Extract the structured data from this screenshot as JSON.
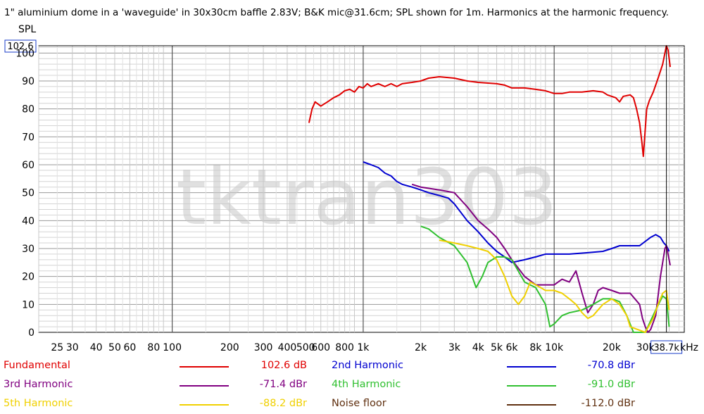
{
  "chart_data": {
    "type": "line",
    "title": "1\" aluminium dome in a 'waveguide' in 30x30cm baffle 2.83V; B&K mic@31.6cm; SPL shown for 1m. Harmonics at the harmonic frequency.",
    "ylabel": "SPL",
    "xlabel": "Hz",
    "xscale": "log",
    "xlim": [
      20,
      48000
    ],
    "ylim": [
      0,
      102.6
    ],
    "y_ticks": [
      0,
      10,
      20,
      30,
      40,
      50,
      60,
      70,
      80,
      90,
      100
    ],
    "x_ticks": [
      {
        "value": 25,
        "label": "25"
      },
      {
        "value": 30,
        "label": "30"
      },
      {
        "value": 40,
        "label": "40"
      },
      {
        "value": 50,
        "label": "50"
      },
      {
        "value": 60,
        "label": "60"
      },
      {
        "value": 80,
        "label": "80"
      },
      {
        "value": 100,
        "label": "100"
      },
      {
        "value": 200,
        "label": "200"
      },
      {
        "value": 300,
        "label": "300"
      },
      {
        "value": 400,
        "label": "400"
      },
      {
        "value": 500,
        "label": "500"
      },
      {
        "value": 600,
        "label": "600"
      },
      {
        "value": 800,
        "label": "800"
      },
      {
        "value": 1000,
        "label": "1k"
      },
      {
        "value": 2000,
        "label": "2k"
      },
      {
        "value": 3000,
        "label": "3k"
      },
      {
        "value": 4000,
        "label": "4k"
      },
      {
        "value": 5000,
        "label": "5k"
      },
      {
        "value": 6000,
        "label": "6k"
      },
      {
        "value": 8000,
        "label": "8k"
      },
      {
        "value": 10000,
        "label": "10k"
      },
      {
        "value": 20000,
        "label": "20k"
      },
      {
        "value": 30000,
        "label": "30k"
      }
    ],
    "x_unit_label": "kHz",
    "cursor": {
      "x": 38700,
      "y": 102.6,
      "x_label": "38.7k",
      "y_label": "102.6"
    },
    "watermark": "tktran303",
    "series": [
      {
        "name": "Fundamental",
        "color": "#e00000",
        "legend_value": "102.6 dB",
        "points": [
          [
            520,
            75
          ],
          [
            540,
            80
          ],
          [
            560,
            82.5
          ],
          [
            600,
            81
          ],
          [
            650,
            82.5
          ],
          [
            700,
            84
          ],
          [
            750,
            85
          ],
          [
            800,
            86.5
          ],
          [
            850,
            87
          ],
          [
            900,
            86
          ],
          [
            950,
            88
          ],
          [
            1000,
            87.5
          ],
          [
            1050,
            89
          ],
          [
            1100,
            88
          ],
          [
            1200,
            89
          ],
          [
            1300,
            88
          ],
          [
            1400,
            89
          ],
          [
            1500,
            88
          ],
          [
            1600,
            89
          ],
          [
            1800,
            89.5
          ],
          [
            2000,
            90
          ],
          [
            2200,
            91
          ],
          [
            2500,
            91.5
          ],
          [
            3000,
            91
          ],
          [
            3500,
            90
          ],
          [
            4000,
            89.5
          ],
          [
            5000,
            89
          ],
          [
            5500,
            88.5
          ],
          [
            6000,
            87.5
          ],
          [
            7000,
            87.5
          ],
          [
            8000,
            87
          ],
          [
            9000,
            86.5
          ],
          [
            10000,
            85.5
          ],
          [
            11000,
            85.5
          ],
          [
            12000,
            86
          ],
          [
            14000,
            86
          ],
          [
            16000,
            86.5
          ],
          [
            18000,
            86
          ],
          [
            19000,
            85
          ],
          [
            21000,
            84
          ],
          [
            22000,
            82.5
          ],
          [
            23000,
            84.5
          ],
          [
            25000,
            85
          ],
          [
            26000,
            84
          ],
          [
            27000,
            80
          ],
          [
            28000,
            75
          ],
          [
            28800,
            68
          ],
          [
            29300,
            63
          ],
          [
            29800,
            70
          ],
          [
            30500,
            80
          ],
          [
            31500,
            83
          ],
          [
            33000,
            86
          ],
          [
            35000,
            91
          ],
          [
            37000,
            96
          ],
          [
            38700,
            102.6
          ],
          [
            39500,
            101
          ],
          [
            40500,
            95
          ]
        ]
      },
      {
        "name": "2nd Harmonic",
        "color": "#0000d0",
        "legend_value": "-70.8 dBr",
        "points": [
          [
            1000,
            61
          ],
          [
            1100,
            60
          ],
          [
            1200,
            59
          ],
          [
            1300,
            57
          ],
          [
            1400,
            56
          ],
          [
            1500,
            54
          ],
          [
            1600,
            53
          ],
          [
            1800,
            52
          ],
          [
            2000,
            51
          ],
          [
            2200,
            50
          ],
          [
            2500,
            49
          ],
          [
            2800,
            48
          ],
          [
            3000,
            46
          ],
          [
            3500,
            40
          ],
          [
            4000,
            36
          ],
          [
            4500,
            32
          ],
          [
            5000,
            29
          ],
          [
            5500,
            27
          ],
          [
            6000,
            25
          ],
          [
            7000,
            26
          ],
          [
            8000,
            27
          ],
          [
            9000,
            28
          ],
          [
            10000,
            28
          ],
          [
            12000,
            28
          ],
          [
            15000,
            28.5
          ],
          [
            18000,
            29
          ],
          [
            20000,
            30
          ],
          [
            22000,
            31
          ],
          [
            25000,
            31
          ],
          [
            28000,
            31
          ],
          [
            32000,
            34
          ],
          [
            34000,
            35
          ],
          [
            36000,
            34
          ],
          [
            37500,
            32
          ],
          [
            38700,
            31
          ],
          [
            40000,
            29
          ]
        ]
      },
      {
        "name": "3rd Harmonic",
        "color": "#800080",
        "legend_value": "-71.4 dBr",
        "points": [
          [
            1800,
            53
          ],
          [
            2000,
            52
          ],
          [
            2500,
            51
          ],
          [
            3000,
            50
          ],
          [
            3500,
            45
          ],
          [
            4000,
            40
          ],
          [
            4500,
            37
          ],
          [
            5000,
            34
          ],
          [
            5500,
            30
          ],
          [
            6000,
            26
          ],
          [
            7000,
            20
          ],
          [
            8000,
            17
          ],
          [
            9000,
            17
          ],
          [
            10000,
            17
          ],
          [
            11000,
            19
          ],
          [
            12000,
            18
          ],
          [
            13000,
            22
          ],
          [
            14000,
            14
          ],
          [
            15000,
            7
          ],
          [
            16000,
            10
          ],
          [
            17000,
            15
          ],
          [
            18000,
            16
          ],
          [
            20000,
            15
          ],
          [
            22000,
            14
          ],
          [
            25000,
            14
          ],
          [
            28000,
            10
          ],
          [
            29000,
            5
          ],
          [
            30000,
            2
          ],
          [
            31000,
            0
          ],
          [
            32000,
            1
          ],
          [
            34000,
            6
          ],
          [
            36000,
            20
          ],
          [
            38000,
            30
          ],
          [
            38700,
            31
          ],
          [
            40500,
            24
          ]
        ]
      },
      {
        "name": "4th Harmonic",
        "color": "#30c030",
        "legend_value": "-91.0 dBr",
        "points": [
          [
            2000,
            38
          ],
          [
            2200,
            37
          ],
          [
            2500,
            34
          ],
          [
            3000,
            31
          ],
          [
            3500,
            25
          ],
          [
            3900,
            16
          ],
          [
            4200,
            20
          ],
          [
            4500,
            25
          ],
          [
            5000,
            27
          ],
          [
            5500,
            27
          ],
          [
            6000,
            26
          ],
          [
            7000,
            18
          ],
          [
            8000,
            16
          ],
          [
            9000,
            10
          ],
          [
            9500,
            2
          ],
          [
            10000,
            3
          ],
          [
            11000,
            6
          ],
          [
            12000,
            7
          ],
          [
            14000,
            8
          ],
          [
            16000,
            10
          ],
          [
            18000,
            12
          ],
          [
            20000,
            12
          ],
          [
            22000,
            11
          ],
          [
            24000,
            6
          ],
          [
            26000,
            0
          ],
          [
            30000,
            0
          ],
          [
            34000,
            8
          ],
          [
            37000,
            13
          ],
          [
            38700,
            12
          ],
          [
            40000,
            2
          ]
        ]
      },
      {
        "name": "5th Harmonic",
        "color": "#f0d000",
        "legend_value": "-88.2 dBr",
        "points": [
          [
            2500,
            33
          ],
          [
            3000,
            32
          ],
          [
            3500,
            31
          ],
          [
            4000,
            30
          ],
          [
            4500,
            29
          ],
          [
            5000,
            26
          ],
          [
            5500,
            20
          ],
          [
            6000,
            13
          ],
          [
            6500,
            10
          ],
          [
            7000,
            13
          ],
          [
            7500,
            18
          ],
          [
            8000,
            17
          ],
          [
            8500,
            16
          ],
          [
            9000,
            15
          ],
          [
            10000,
            15
          ],
          [
            11000,
            14
          ],
          [
            12000,
            12
          ],
          [
            13000,
            10
          ],
          [
            14000,
            7
          ],
          [
            15000,
            5
          ],
          [
            16000,
            6
          ],
          [
            18000,
            10
          ],
          [
            20000,
            12
          ],
          [
            22000,
            10
          ],
          [
            24000,
            6
          ],
          [
            25000,
            2
          ],
          [
            30000,
            0
          ],
          [
            33000,
            5
          ],
          [
            35000,
            10
          ],
          [
            37000,
            14
          ],
          [
            38700,
            15
          ],
          [
            40000,
            8
          ]
        ]
      }
    ]
  },
  "legend": [
    {
      "name": "Fundamental",
      "value": "102.6 dB",
      "color": "#e00000"
    },
    {
      "name": "2nd Harmonic",
      "value": "-70.8 dBr",
      "color": "#0000d0"
    },
    {
      "name": "3rd Harmonic",
      "value": "-71.4 dBr",
      "color": "#800080"
    },
    {
      "name": "4th Harmonic",
      "value": "-91.0 dBr",
      "color": "#30c030"
    },
    {
      "name": "5th Harmonic",
      "value": "-88.2 dBr",
      "color": "#f0d000"
    },
    {
      "name": "Noise floor",
      "value": "-112.0 dBr",
      "color": "#603010"
    }
  ]
}
